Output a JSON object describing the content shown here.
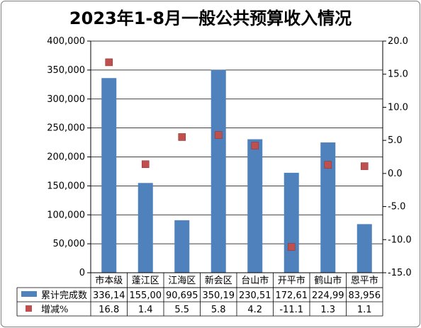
{
  "chart_data": {
    "type": "bar",
    "title": "2023年1-8月一般公共预算收入情况",
    "categories": [
      "市本级",
      "蓬江区",
      "江海区",
      "新会区",
      "台山市",
      "开平市",
      "鹤山市",
      "恩平市"
    ],
    "series": [
      {
        "name": "累计完成数",
        "type": "bar",
        "axis": "left",
        "color": "#4f81bd",
        "values": [
          336140,
          155000,
          90695,
          350190,
          230510,
          172610,
          224990,
          83956
        ],
        "table_labels": [
          "336,14",
          "155,00",
          "90,695",
          "350,19",
          "230,51",
          "172,61",
          "224,99",
          "83,956"
        ]
      },
      {
        "name": "增减%",
        "type": "scatter",
        "axis": "right",
        "color": "#c0504d",
        "values": [
          16.8,
          1.4,
          5.5,
          5.8,
          4.2,
          -11.1,
          1.3,
          1.1
        ],
        "table_labels": [
          "16.8",
          "1.4",
          "5.5",
          "5.8",
          "4.2",
          "-11.1",
          "1.3",
          "1.1"
        ]
      }
    ],
    "y_left": {
      "min": 0,
      "max": 400000,
      "step": 50000,
      "tick_labels": [
        "0",
        "50,000",
        "100,000",
        "150,000",
        "200,000",
        "250,000",
        "300,000",
        "350,000",
        "400,000"
      ]
    },
    "y_right": {
      "min": -15,
      "max": 20,
      "step": 5,
      "tick_labels": [
        "-15.0",
        "-10.0",
        "-5.0",
        "0.0",
        "5.0",
        "10.0",
        "15.0",
        "20.0"
      ]
    },
    "grid": true,
    "legend": "data-table"
  }
}
